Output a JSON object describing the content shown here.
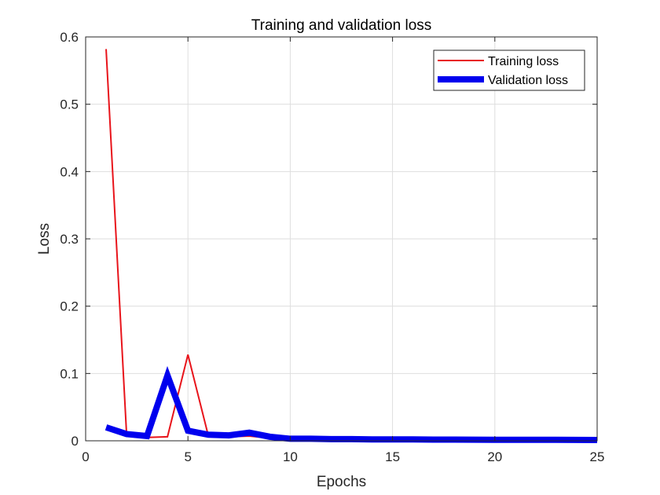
{
  "chart_data": {
    "type": "line",
    "title": "Training and validation loss",
    "xlabel": "Epochs",
    "ylabel": "Loss",
    "xlim": [
      0,
      25
    ],
    "ylim": [
      0,
      0.6
    ],
    "xticks": [
      0,
      5,
      10,
      15,
      20,
      25
    ],
    "yticks": [
      0,
      0.1,
      0.2,
      0.3,
      0.4,
      0.5,
      0.6
    ],
    "xtick_labels": [
      "0",
      "5",
      "10",
      "15",
      "20",
      "25"
    ],
    "ytick_labels": [
      "0",
      "0.1",
      "0.2",
      "0.3",
      "0.4",
      "0.5",
      "0.6"
    ],
    "grid": true,
    "legend_position": "top-right",
    "x": [
      1,
      2,
      3,
      4,
      5,
      6,
      7,
      8,
      9,
      10,
      11,
      12,
      13,
      14,
      15,
      16,
      17,
      18,
      19,
      20,
      21,
      22,
      23,
      24,
      25
    ],
    "series": [
      {
        "name": "Training loss",
        "color": "#e8141b",
        "weight": "thin",
        "values": [
          0.582,
          0.01,
          0.005,
          0.006,
          0.128,
          0.007,
          0.006,
          0.007,
          0.004,
          0.002,
          0.002,
          0.002,
          0.002,
          0.0015,
          0.0015,
          0.0015,
          0.0012,
          0.0012,
          0.0012,
          0.001,
          0.001,
          0.001,
          0.001,
          0.001,
          0.001
        ]
      },
      {
        "name": "Validation loss",
        "color": "#0000ee",
        "weight": "thick",
        "values": [
          0.02,
          0.01,
          0.007,
          0.097,
          0.015,
          0.009,
          0.008,
          0.012,
          0.006,
          0.003,
          0.003,
          0.0025,
          0.0025,
          0.002,
          0.002,
          0.002,
          0.0018,
          0.0018,
          0.0016,
          0.0015,
          0.0015,
          0.0014,
          0.0014,
          0.0013,
          0.0012
        ]
      }
    ]
  }
}
